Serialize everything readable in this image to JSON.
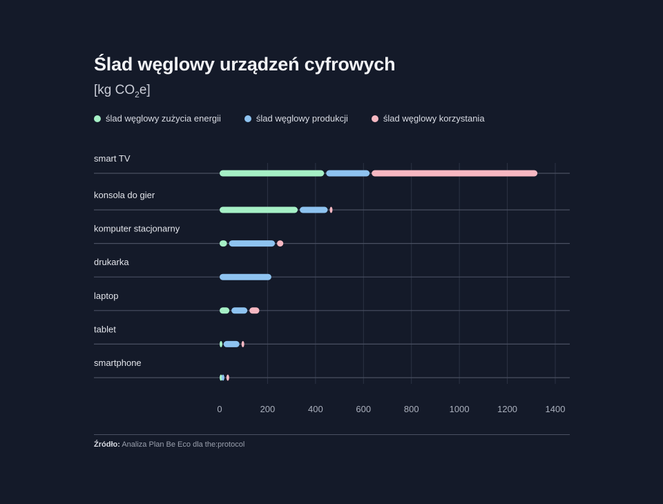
{
  "title": "Ślad węglowy urządzeń cyfrowych",
  "subtitle_prefix": "[kg CO",
  "subtitle_sub": "2",
  "subtitle_suffix": "e]",
  "legend": [
    {
      "label": "ślad węglowy zużycia energii",
      "color": "#a6f0c6"
    },
    {
      "label": "ślad węglowy produkcji",
      "color": "#8ec3f0"
    },
    {
      "label": "ślad węglowy korzystania",
      "color": "#f7b8c2"
    }
  ],
  "source_label": "Źródło:",
  "source_text": "Analiza Plan Be Eco dla the:protocol",
  "chart_data": {
    "type": "bar",
    "stacked": true,
    "orientation": "horizontal",
    "categories": [
      "smart TV",
      "konsola do gier",
      "komputer stacjonarny",
      "drukarka",
      "laptop",
      "tablet",
      "smartphone"
    ],
    "series": [
      {
        "name": "ślad węglowy zużycia energii",
        "color": "#a6f0c6",
        "values": [
          440,
          330,
          35,
          0,
          45,
          12,
          4
        ]
      },
      {
        "name": "ślad węglowy produkcji",
        "color": "#8ec3f0",
        "values": [
          190,
          125,
          200,
          220,
          75,
          75,
          20
        ]
      },
      {
        "name": "ślad węglowy korzystania",
        "color": "#f7b8c2",
        "values": [
          700,
          20,
          35,
          0,
          50,
          12,
          20
        ]
      }
    ],
    "xticks": [
      0,
      200,
      400,
      600,
      800,
      1000,
      1200,
      1400
    ],
    "xlim": [
      0,
      1450
    ],
    "grid": true
  }
}
